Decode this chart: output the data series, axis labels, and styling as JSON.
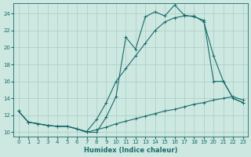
{
  "xlabel": "Humidex (Indice chaleur)",
  "xlim": [
    -0.5,
    23.5
  ],
  "ylim": [
    9.5,
    25.2
  ],
  "xticks": [
    0,
    1,
    2,
    3,
    4,
    5,
    6,
    7,
    8,
    9,
    10,
    11,
    12,
    13,
    14,
    15,
    16,
    17,
    18,
    19,
    20,
    21,
    22,
    23
  ],
  "yticks": [
    10,
    12,
    14,
    16,
    18,
    20,
    22,
    24
  ],
  "background_color": "#cce8e0",
  "grid_color": "#aaccC4",
  "line_color": "#1a6b6b",
  "line1_x": [
    0,
    1,
    2,
    3,
    4,
    5,
    6,
    7,
    8,
    9,
    10,
    11,
    12,
    13,
    14,
    15,
    16,
    17,
    18,
    19,
    20,
    21,
    22,
    23
  ],
  "line1_y": [
    12.5,
    11.2,
    11.0,
    10.8,
    10.7,
    10.7,
    10.4,
    10.0,
    10.0,
    11.8,
    14.2,
    21.2,
    19.8,
    23.6,
    24.2,
    23.7,
    25.0,
    23.8,
    23.6,
    23.2,
    16.0,
    16.0,
    14.0,
    13.5
  ],
  "line2_x": [
    0,
    1,
    2,
    3,
    4,
    5,
    6,
    7,
    8,
    9,
    10,
    11,
    12,
    13,
    14,
    15,
    16,
    17,
    18,
    19,
    20,
    21,
    22,
    23
  ],
  "line2_y": [
    12.5,
    11.2,
    11.0,
    10.8,
    10.7,
    10.7,
    10.4,
    10.1,
    11.5,
    13.5,
    16.0,
    17.5,
    19.0,
    20.5,
    22.0,
    23.0,
    23.5,
    23.7,
    23.7,
    23.0,
    19.0,
    16.0,
    14.0,
    13.5
  ],
  "line3_x": [
    0,
    1,
    2,
    3,
    4,
    5,
    6,
    7,
    8,
    9,
    10,
    11,
    12,
    13,
    14,
    15,
    16,
    17,
    18,
    19,
    20,
    21,
    22,
    23
  ],
  "line3_y": [
    12.5,
    11.2,
    11.0,
    10.8,
    10.7,
    10.7,
    10.4,
    10.0,
    10.3,
    10.6,
    11.0,
    11.3,
    11.6,
    11.9,
    12.2,
    12.5,
    12.7,
    13.0,
    13.3,
    13.5,
    13.8,
    14.0,
    14.2,
    13.8
  ]
}
